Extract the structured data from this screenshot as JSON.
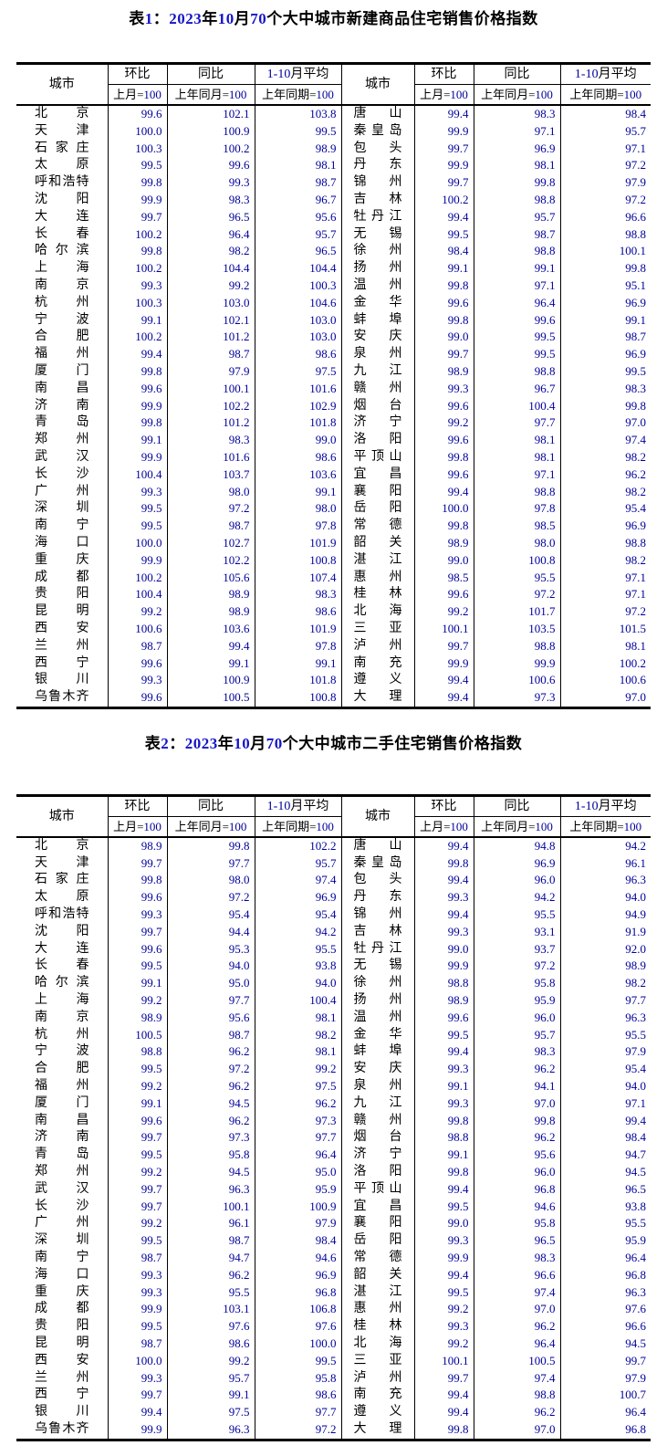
{
  "colors": {
    "background": "#ffffff",
    "chinese_text": "#000000",
    "table_number_blue": "#00009b",
    "title_digit_blue": "#1414c8",
    "border": "#000000"
  },
  "tables": [
    {
      "title": "表1：2023年10月70个大中城市新建商品住宅销售价格指数",
      "header": {
        "city": "城市",
        "mom": "环比",
        "yoy": "同比",
        "avg": "1-10月平均",
        "mom_base": "上月=100",
        "yoy_base": "上年同月=100",
        "avg_base": "上年同期=100"
      },
      "rows": [
        [
          "北京",
          "99.6",
          "102.1",
          "103.8",
          "唐山",
          "99.4",
          "98.3",
          "98.4"
        ],
        [
          "天津",
          "100.0",
          "100.9",
          "99.5",
          "秦皇岛",
          "99.9",
          "97.1",
          "95.7"
        ],
        [
          "石家庄",
          "100.3",
          "100.2",
          "98.9",
          "包头",
          "99.7",
          "96.9",
          "97.1"
        ],
        [
          "太原",
          "99.5",
          "99.6",
          "98.1",
          "丹东",
          "99.9",
          "98.1",
          "97.2"
        ],
        [
          "呼和浩特",
          "99.8",
          "99.3",
          "98.7",
          "锦州",
          "99.7",
          "99.8",
          "97.9"
        ],
        [
          "沈阳",
          "99.9",
          "98.3",
          "96.7",
          "吉林",
          "100.2",
          "98.8",
          "97.2"
        ],
        [
          "大连",
          "99.7",
          "96.5",
          "95.6",
          "牡丹江",
          "99.4",
          "95.7",
          "96.6"
        ],
        [
          "长春",
          "100.2",
          "96.4",
          "95.7",
          "无锡",
          "99.5",
          "98.7",
          "98.8"
        ],
        [
          "哈尔滨",
          "99.8",
          "98.2",
          "96.5",
          "徐州",
          "98.4",
          "98.8",
          "100.1"
        ],
        [
          "上海",
          "100.2",
          "104.4",
          "104.4",
          "扬州",
          "99.1",
          "99.1",
          "99.8"
        ],
        [
          "南京",
          "99.3",
          "99.2",
          "100.3",
          "温州",
          "99.8",
          "97.1",
          "95.1"
        ],
        [
          "杭州",
          "100.3",
          "103.0",
          "104.6",
          "金华",
          "99.6",
          "96.4",
          "96.9"
        ],
        [
          "宁波",
          "99.1",
          "102.1",
          "103.0",
          "蚌埠",
          "99.8",
          "99.6",
          "99.1"
        ],
        [
          "合肥",
          "100.2",
          "101.2",
          "103.0",
          "安庆",
          "99.0",
          "99.5",
          "98.7"
        ],
        [
          "福州",
          "99.4",
          "98.7",
          "98.6",
          "泉州",
          "99.7",
          "99.5",
          "96.9"
        ],
        [
          "厦门",
          "99.8",
          "97.9",
          "97.5",
          "九江",
          "98.9",
          "98.8",
          "99.5"
        ],
        [
          "南昌",
          "99.6",
          "100.1",
          "101.6",
          "赣州",
          "99.3",
          "96.7",
          "98.3"
        ],
        [
          "济南",
          "99.9",
          "102.2",
          "102.9",
          "烟台",
          "99.6",
          "100.4",
          "99.8"
        ],
        [
          "青岛",
          "99.8",
          "101.2",
          "101.8",
          "济宁",
          "99.2",
          "97.7",
          "97.0"
        ],
        [
          "郑州",
          "99.1",
          "98.3",
          "99.0",
          "洛阳",
          "99.6",
          "98.1",
          "97.4"
        ],
        [
          "武汉",
          "99.9",
          "101.6",
          "98.6",
          "平顶山",
          "99.8",
          "98.1",
          "98.2"
        ],
        [
          "长沙",
          "100.4",
          "103.7",
          "103.6",
          "宜昌",
          "99.6",
          "97.1",
          "96.2"
        ],
        [
          "广州",
          "99.3",
          "98.0",
          "99.1",
          "襄阳",
          "99.4",
          "98.8",
          "98.2"
        ],
        [
          "深圳",
          "99.5",
          "97.2",
          "98.0",
          "岳阳",
          "100.0",
          "97.8",
          "95.4"
        ],
        [
          "南宁",
          "99.5",
          "98.7",
          "97.8",
          "常德",
          "99.8",
          "98.5",
          "96.9"
        ],
        [
          "海口",
          "100.0",
          "102.7",
          "101.9",
          "韶关",
          "98.9",
          "98.0",
          "98.8"
        ],
        [
          "重庆",
          "99.9",
          "102.2",
          "100.8",
          "湛江",
          "99.0",
          "100.8",
          "98.2"
        ],
        [
          "成都",
          "100.2",
          "105.6",
          "107.4",
          "惠州",
          "98.5",
          "95.5",
          "97.1"
        ],
        [
          "贵阳",
          "100.4",
          "98.9",
          "98.3",
          "桂林",
          "99.6",
          "97.2",
          "97.1"
        ],
        [
          "昆明",
          "99.2",
          "98.9",
          "98.6",
          "北海",
          "99.2",
          "101.7",
          "97.2"
        ],
        [
          "西安",
          "100.6",
          "103.6",
          "101.9",
          "三亚",
          "100.1",
          "103.5",
          "101.5"
        ],
        [
          "兰州",
          "98.7",
          "99.4",
          "97.8",
          "泸州",
          "99.7",
          "98.8",
          "98.1"
        ],
        [
          "西宁",
          "99.6",
          "99.1",
          "99.1",
          "南充",
          "99.9",
          "99.9",
          "100.2"
        ],
        [
          "银川",
          "99.3",
          "100.9",
          "101.8",
          "遵义",
          "99.4",
          "100.6",
          "100.6"
        ],
        [
          "乌鲁木齐",
          "99.6",
          "100.5",
          "100.8",
          "大理",
          "99.4",
          "97.3",
          "97.0"
        ]
      ]
    },
    {
      "title": "表2：2023年10月70个大中城市二手住宅销售价格指数",
      "header": {
        "city": "城市",
        "mom": "环比",
        "yoy": "同比",
        "avg": "1-10月平均",
        "mom_base": "上月=100",
        "yoy_base": "上年同月=100",
        "avg_base": "上年同期=100"
      },
      "rows": [
        [
          "北京",
          "98.9",
          "99.8",
          "102.2",
          "唐山",
          "99.4",
          "94.8",
          "94.2"
        ],
        [
          "天津",
          "99.7",
          "97.7",
          "95.7",
          "秦皇岛",
          "99.8",
          "96.9",
          "96.1"
        ],
        [
          "石家庄",
          "99.8",
          "98.0",
          "97.4",
          "包头",
          "99.4",
          "96.0",
          "96.3"
        ],
        [
          "太原",
          "99.6",
          "97.2",
          "96.9",
          "丹东",
          "99.3",
          "94.2",
          "94.0"
        ],
        [
          "呼和浩特",
          "99.3",
          "95.4",
          "95.4",
          "锦州",
          "99.4",
          "95.5",
          "94.9"
        ],
        [
          "沈阳",
          "99.7",
          "94.4",
          "94.2",
          "吉林",
          "99.3",
          "93.1",
          "91.9"
        ],
        [
          "大连",
          "99.6",
          "95.3",
          "95.5",
          "牡丹江",
          "99.0",
          "93.7",
          "92.0"
        ],
        [
          "长春",
          "99.5",
          "94.0",
          "93.8",
          "无锡",
          "99.9",
          "97.2",
          "98.9"
        ],
        [
          "哈尔滨",
          "99.1",
          "95.0",
          "94.0",
          "徐州",
          "98.8",
          "95.8",
          "98.2"
        ],
        [
          "上海",
          "99.2",
          "97.7",
          "100.4",
          "扬州",
          "98.9",
          "95.9",
          "97.7"
        ],
        [
          "南京",
          "98.9",
          "95.6",
          "98.1",
          "温州",
          "99.6",
          "96.0",
          "96.3"
        ],
        [
          "杭州",
          "100.5",
          "98.7",
          "98.2",
          "金华",
          "99.5",
          "95.7",
          "95.5"
        ],
        [
          "宁波",
          "98.8",
          "96.2",
          "98.1",
          "蚌埠",
          "99.4",
          "98.3",
          "97.9"
        ],
        [
          "合肥",
          "99.5",
          "97.2",
          "99.2",
          "安庆",
          "99.3",
          "96.2",
          "95.4"
        ],
        [
          "福州",
          "99.2",
          "96.2",
          "97.5",
          "泉州",
          "99.1",
          "94.1",
          "94.0"
        ],
        [
          "厦门",
          "99.1",
          "94.5",
          "96.2",
          "九江",
          "99.3",
          "97.0",
          "97.1"
        ],
        [
          "南昌",
          "99.6",
          "96.2",
          "97.3",
          "赣州",
          "99.8",
          "99.8",
          "99.4"
        ],
        [
          "济南",
          "99.7",
          "97.3",
          "97.7",
          "烟台",
          "98.8",
          "96.2",
          "98.4"
        ],
        [
          "青岛",
          "99.5",
          "95.8",
          "96.4",
          "济宁",
          "99.1",
          "95.6",
          "94.7"
        ],
        [
          "郑州",
          "99.2",
          "94.5",
          "95.0",
          "洛阳",
          "99.8",
          "96.0",
          "94.5"
        ],
        [
          "武汉",
          "99.7",
          "96.3",
          "95.9",
          "平顶山",
          "99.4",
          "96.8",
          "96.5"
        ],
        [
          "长沙",
          "99.7",
          "100.1",
          "100.9",
          "宜昌",
          "99.5",
          "94.6",
          "93.8"
        ],
        [
          "广州",
          "99.2",
          "96.1",
          "97.9",
          "襄阳",
          "99.0",
          "95.8",
          "95.5"
        ],
        [
          "深圳",
          "99.5",
          "98.7",
          "98.4",
          "岳阳",
          "99.3",
          "96.5",
          "95.9"
        ],
        [
          "南宁",
          "98.7",
          "94.7",
          "94.6",
          "常德",
          "99.9",
          "98.3",
          "96.4"
        ],
        [
          "海口",
          "99.3",
          "96.2",
          "96.9",
          "韶关",
          "99.4",
          "96.6",
          "96.8"
        ],
        [
          "重庆",
          "99.3",
          "95.5",
          "96.8",
          "湛江",
          "99.5",
          "97.4",
          "96.3"
        ],
        [
          "成都",
          "99.9",
          "103.1",
          "106.8",
          "惠州",
          "99.2",
          "97.0",
          "97.6"
        ],
        [
          "贵阳",
          "99.5",
          "97.6",
          "97.6",
          "桂林",
          "99.3",
          "96.2",
          "96.6"
        ],
        [
          "昆明",
          "98.7",
          "98.6",
          "100.0",
          "北海",
          "99.2",
          "96.4",
          "94.5"
        ],
        [
          "西安",
          "100.0",
          "99.2",
          "99.5",
          "三亚",
          "100.1",
          "100.5",
          "99.7"
        ],
        [
          "兰州",
          "99.3",
          "95.7",
          "95.8",
          "泸州",
          "99.7",
          "97.4",
          "97.9"
        ],
        [
          "西宁",
          "99.7",
          "99.1",
          "98.6",
          "南充",
          "99.4",
          "98.8",
          "100.7"
        ],
        [
          "银川",
          "99.4",
          "97.5",
          "97.7",
          "遵义",
          "99.4",
          "96.2",
          "96.4"
        ],
        [
          "乌鲁木齐",
          "99.9",
          "96.3",
          "97.2",
          "大理",
          "99.8",
          "97.0",
          "96.8"
        ]
      ]
    }
  ]
}
